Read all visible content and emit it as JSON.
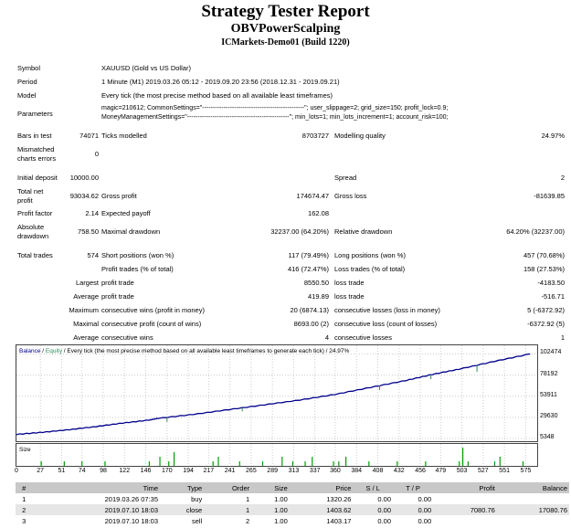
{
  "title": "Strategy Tester Report",
  "expert": "OBVPowerScalping",
  "server": "ICMarkets-Demo01 (Build 1220)",
  "settings": {
    "symbol_label": "Symbol",
    "symbol": "XAUUSD (Gold vs US Dollar)",
    "period_label": "Period",
    "period": "1 Minute (M1) 2019.03.26 05:12 - 2019.09.20 23:56 (2018.12.31 - 2019.09.21)",
    "model_label": "Model",
    "model": "Every tick (the most precise method based on all available least timeframes)",
    "parameters_label": "Parameters",
    "parameters_line1": "magic=210612; CommonSettings=\"------------------------------------------------\"; user_slippage=2; grid_size=150; profit_lock=0.9;",
    "parameters_line2": "MoneyManagementSettings=\"------------------------------------------------\"; min_lots=1; min_lots_increment=1; account_risk=100;"
  },
  "stats": {
    "bars_label": "Bars in test",
    "bars": "74071",
    "ticks_label": "Ticks modelled",
    "ticks": "8703727",
    "quality_label": "Modelling quality",
    "quality": "24.97%",
    "mismatch_label_1": "Mismatched",
    "mismatch_label_2": "charts errors",
    "mismatch": "0",
    "deposit_label": "Initial deposit",
    "deposit": "10000.00",
    "spread_label": "Spread",
    "spread": "2",
    "net_label_1": "Total net",
    "net_label_2": "profit",
    "net": "93034.62",
    "gross_profit_label": "Gross profit",
    "gross_profit": "174674.47",
    "gross_loss_label": "Gross loss",
    "gross_loss": "-81639.85",
    "pf_label": "Profit factor",
    "pf": "2.14",
    "ep_label": "Expected payoff",
    "ep": "162.08",
    "abs_dd_label_1": "Absolute",
    "abs_dd_label_2": "drawdown",
    "abs_dd": "758.50",
    "max_dd_label": "Maximal drawdown",
    "max_dd": "32237.00 (64.20%)",
    "rel_dd_label": "Relative drawdown",
    "rel_dd": "64.20% (32237.00)",
    "total_trades_label": "Total trades",
    "total_trades": "574",
    "short_label": "Short positions (won %)",
    "short": "117 (79.49%)",
    "long_label": "Long positions (won %)",
    "long": "457 (70.68%)",
    "pt_label": "Profit trades (% of total)",
    "pt": "416 (72.47%)",
    "lt_label": "Loss trades (% of total)",
    "lt": "158 (27.53%)",
    "largest_label": "Largest",
    "average_label": "Average",
    "maximum_label": "Maximum",
    "maximal_label": "Maximal",
    "profit_trade_label": "profit trade",
    "loss_trade_label": "loss trade",
    "largest_profit": "8550.50",
    "largest_loss": "-4183.50",
    "average_profit": "419.89",
    "average_loss": "-516.71",
    "cw_money_label": "consecutive wins (profit in money)",
    "cw_money": "20 (6874.13)",
    "cl_money_label": "consecutive losses (loss in money)",
    "cl_money": "5 (-6372.92)",
    "cp_count_label": "consecutive profit (count of wins)",
    "cp_count": "8693.00 (2)",
    "cl_count_label": "consecutive loss (count of losses)",
    "cl_count": "-6372.92 (5)",
    "cw_avg_label": "consecutive wins",
    "cw_avg": "4",
    "cl_avg_label": "consecutive losses",
    "cl_avg": "1"
  },
  "chart_data": [
    {
      "type": "line",
      "legend_balance": "Balance",
      "legend_sep": " / ",
      "legend_equity": "Equity",
      "legend_rest": " / Every tick (the most precise method based on all available least timeframes to generate each tick) / 24.97%",
      "ylim": [
        5348,
        104000
      ],
      "yticks": [
        "102474",
        "78192",
        "53911",
        "29630",
        "5348"
      ],
      "x_ticks": [
        "0",
        "27",
        "51",
        "74",
        "98",
        "122",
        "146",
        "170",
        "194",
        "217",
        "241",
        "265",
        "289",
        "313",
        "337",
        "360",
        "384",
        "408",
        "432",
        "456",
        "479",
        "503",
        "527",
        "551",
        "575"
      ],
      "xlim": [
        0,
        588
      ],
      "series": [
        {
          "name": "Balance",
          "color": "#00008b",
          "x": [
            0,
            30,
            60,
            90,
            120,
            150,
            160,
            200,
            240,
            280,
            320,
            360,
            400,
            440,
            470,
            500,
            540,
            580
          ],
          "y": [
            10000,
            12500,
            15500,
            19000,
            23000,
            26500,
            28500,
            33000,
            38500,
            44000,
            49500,
            56000,
            64000,
            72000,
            79000,
            85000,
            94000,
            102474
          ]
        },
        {
          "name": "Equity",
          "color": "#2e8b57",
          "dips": [
            [
              170,
              24500
            ],
            [
              255,
              36500
            ],
            [
              410,
              61000
            ],
            [
              468,
              73500
            ],
            [
              520,
              82000
            ]
          ]
        }
      ]
    },
    {
      "type": "bar",
      "title": "Size",
      "color": "#00a000",
      "x": [
        28,
        54,
        74,
        100,
        150,
        162,
        172,
        178,
        222,
        228,
        252,
        278,
        300,
        312,
        326,
        334,
        358,
        364,
        372,
        398,
        430,
        462,
        500,
        504,
        510,
        540,
        546,
        572
      ],
      "values": [
        1,
        1,
        1,
        1,
        1,
        2,
        1,
        3,
        1,
        2,
        1,
        1,
        2,
        1,
        1,
        2,
        1,
        1,
        2,
        1,
        1,
        1,
        1,
        4,
        1,
        1,
        2,
        1
      ],
      "ylim": [
        0,
        4
      ]
    }
  ],
  "trades": {
    "headers": [
      "#",
      "Time",
      "Type",
      "Order",
      "Size",
      "Price",
      "S / L",
      "T / P",
      "Profit",
      "Balance"
    ],
    "rows": [
      [
        "1",
        "2019.03.26 07:35",
        "buy",
        "1",
        "1.00",
        "1320.26",
        "0.00",
        "0.00",
        "",
        ""
      ],
      [
        "2",
        "2019.07.10 18:03",
        "close",
        "1",
        "1.00",
        "1403.62",
        "0.00",
        "0.00",
        "7080.76",
        "17080.76"
      ],
      [
        "3",
        "2019.07.10 18:03",
        "sell",
        "2",
        "1.00",
        "1403.17",
        "0.00",
        "0.00",
        "",
        ""
      ]
    ]
  }
}
